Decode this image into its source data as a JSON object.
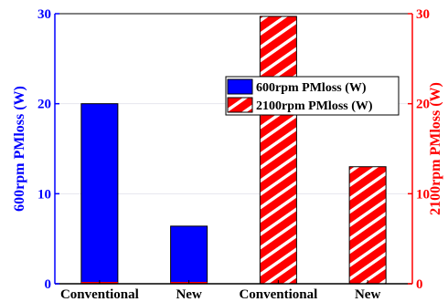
{
  "chart_data": {
    "type": "bar",
    "categories": [
      "Conventional",
      "New",
      "Conventional",
      "New"
    ],
    "series": [
      {
        "name": "600rpm PMloss (W)",
        "axis": "left",
        "color": "#0000ff",
        "pattern": "solid",
        "values": [
          20.0,
          6.4,
          0,
          0
        ]
      },
      {
        "name": "2100rpm PMloss (W)",
        "axis": "right",
        "color": "#ff0000",
        "pattern": "white-diagonal-hatch",
        "values": [
          0,
          0,
          29.7,
          13.0
        ]
      }
    ],
    "y_left": {
      "label": "600rpm PMloss (W)",
      "ylim": [
        0,
        30
      ],
      "ticks": [
        0,
        10,
        20,
        30
      ],
      "color": "#0000ff"
    },
    "y_right": {
      "label": "2100rpm PMloss (W)",
      "ylim": [
        0,
        30
      ],
      "ticks": [
        0,
        10,
        20,
        30
      ],
      "color": "#ff0000"
    },
    "title": "",
    "xlabel": "",
    "grid": "horizontal-light",
    "legend": {
      "placement": "top-right",
      "entries": [
        "600rpm PMloss (W)",
        "2100rpm PMloss (W)"
      ]
    }
  }
}
